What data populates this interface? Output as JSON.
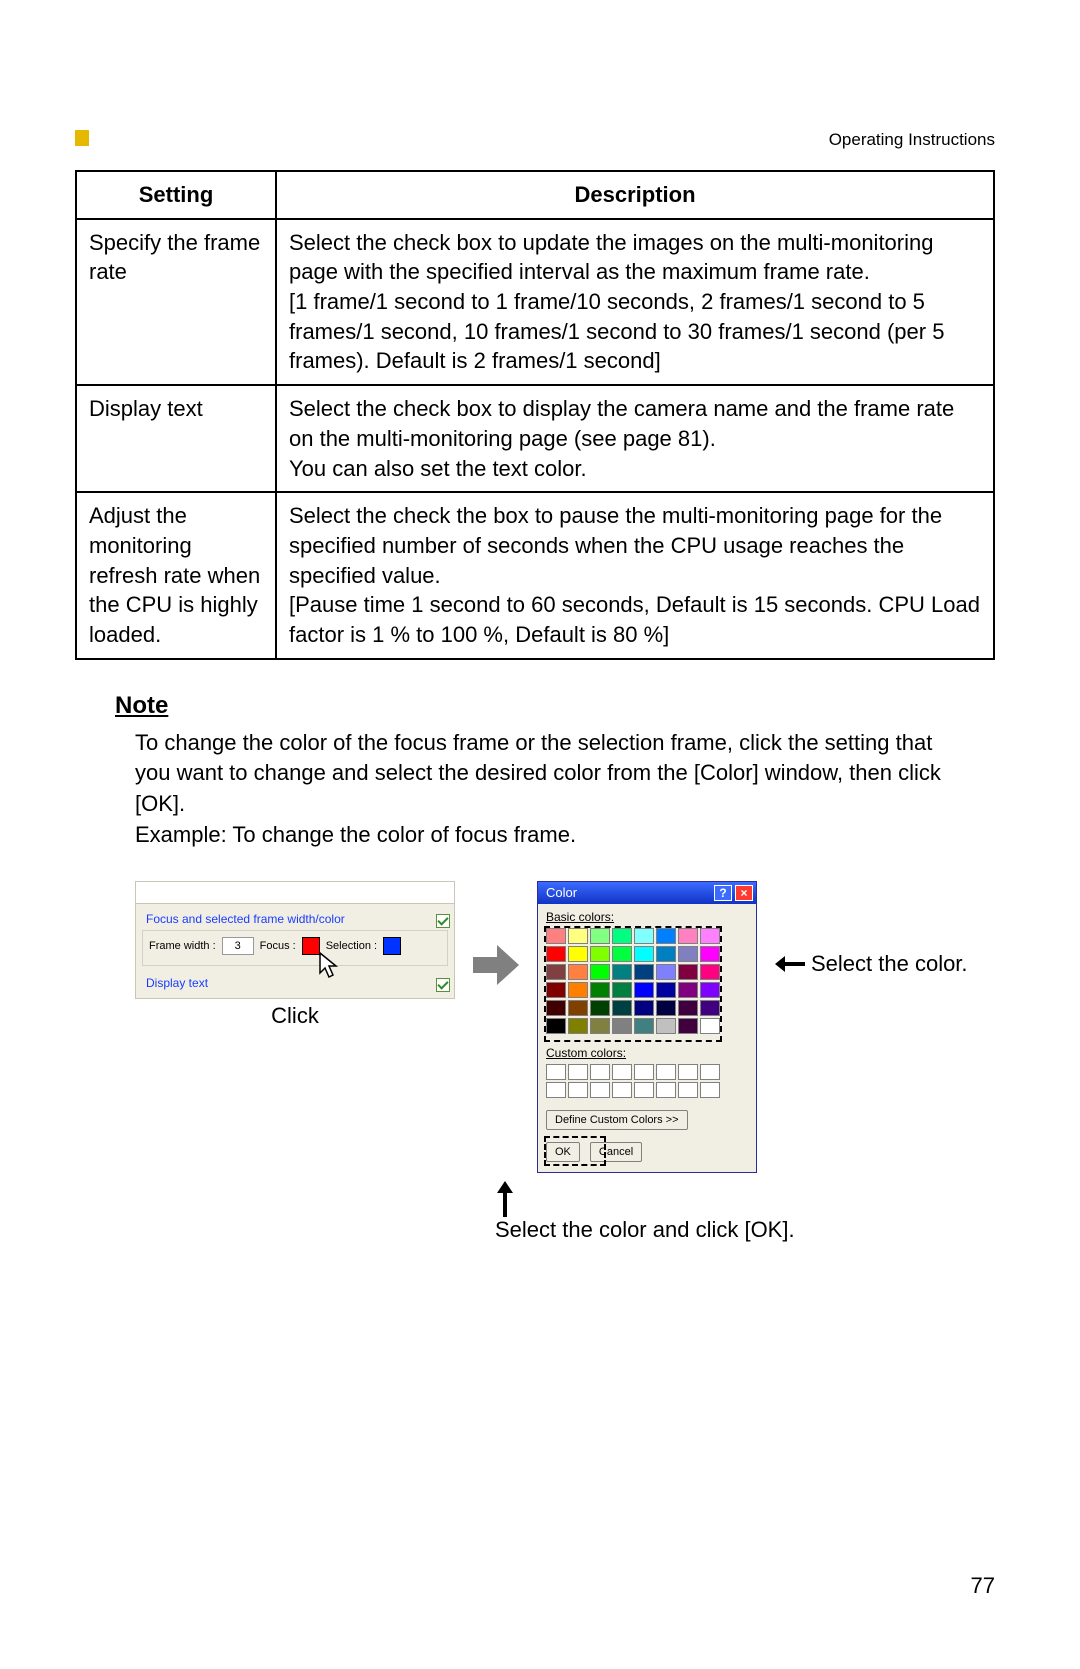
{
  "header": {
    "doc_title": "Operating Instructions"
  },
  "table": {
    "head": {
      "setting": "Setting",
      "description": "Description"
    },
    "rows": [
      {
        "setting": "Specify the frame rate",
        "description": "Select the check box to update the images on the multi-monitoring page with the specified interval as the maximum frame rate.\n[1 frame/1 second to 1 frame/10 seconds, 2 frames/1 second to 5 frames/1 second, 10 frames/1 second to 30 frames/1 second (per 5 frames). Default is 2 frames/1 second]"
      },
      {
        "setting": "Display text",
        "description": "Select the check box to display the camera name and the frame rate on the multi-monitoring page (see page 81).\nYou can also set the text color."
      },
      {
        "setting": "Adjust the monitoring refresh rate when the CPU is highly loaded.",
        "description": "Select the check the box to pause the multi-monitoring page for the specified number of seconds when the CPU usage reaches the specified value.\n[Pause time 1 second to 60 seconds, Default is 15 seconds. CPU Load factor is 1 % to 100 %, Default is 80 %]"
      }
    ]
  },
  "note": {
    "heading": "Note",
    "body1": "To change the color of the focus frame or the selection frame, click the setting that you want to change and select the desired color from the [Color] window, then click [OK].",
    "body2": "Example: To change the color of focus frame."
  },
  "frame_panel": {
    "group_title": "Focus and selected frame width/color",
    "frame_width_label": "Frame width :",
    "frame_width_value": "3",
    "focus_label": "Focus :",
    "focus_color": "#ff0000",
    "selection_label": "Selection :",
    "selection_color": "#0033ff",
    "display_text_label": "Display text",
    "click_label": "Click"
  },
  "color_dialog": {
    "title": "Color",
    "basic_label": "Basic colors:",
    "custom_label": "Custom colors:",
    "define_label": "Define Custom Colors >>",
    "ok_label": "OK",
    "cancel_label": "Cancel",
    "basic_colors": [
      "#ff8080",
      "#ffff80",
      "#80ff80",
      "#00ff80",
      "#80ffff",
      "#0080ff",
      "#ff80c0",
      "#ff80ff",
      "#ff0000",
      "#ffff00",
      "#80ff00",
      "#00ff40",
      "#00ffff",
      "#0080c0",
      "#8080c0",
      "#ff00ff",
      "#804040",
      "#ff8040",
      "#00ff00",
      "#008080",
      "#004080",
      "#8080ff",
      "#800040",
      "#ff0080",
      "#800000",
      "#ff8000",
      "#008000",
      "#008040",
      "#0000ff",
      "#0000a0",
      "#800080",
      "#8000ff",
      "#400000",
      "#804000",
      "#004000",
      "#004040",
      "#000080",
      "#000040",
      "#400040",
      "#400080",
      "#000000",
      "#808000",
      "#808040",
      "#808080",
      "#408080",
      "#c0c0c0",
      "#400040",
      "#ffffff"
    ]
  },
  "annotations": {
    "select_color": "Select the color.",
    "select_and_ok": "Select the color and click [OK]."
  },
  "page_number": "77",
  "colors": {
    "accent": "#e6b800",
    "link": "#1a3bff",
    "titlebar_start": "#3b6bff",
    "titlebar_end": "#1033c4",
    "close_btn": "#ff3b2f"
  }
}
